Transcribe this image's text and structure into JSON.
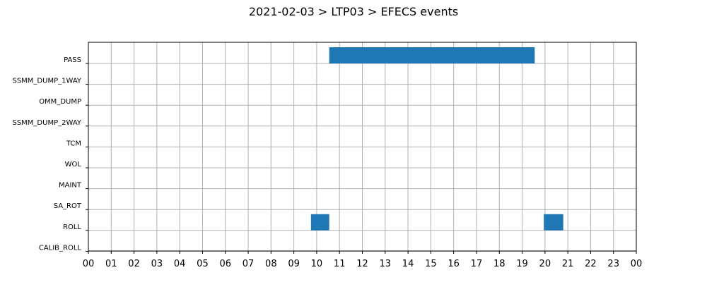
{
  "chart_data": {
    "type": "bar",
    "orientation": "horizontal-timeline",
    "title": "2021-02-03 > LTP03 > EFECS events",
    "xlabel": "",
    "ylabel": "",
    "xlim": [
      0,
      24
    ],
    "x_ticks": [
      "00",
      "01",
      "02",
      "03",
      "04",
      "05",
      "06",
      "07",
      "08",
      "09",
      "10",
      "11",
      "12",
      "13",
      "14",
      "15",
      "16",
      "17",
      "18",
      "19",
      "20",
      "21",
      "22",
      "23",
      "00"
    ],
    "categories": [
      "PASS",
      "SSMM_DUMP_1WAY",
      "OMM_DUMP",
      "SSMM_DUMP_2WAY",
      "TCM",
      "WOL",
      "MAINT",
      "SA_ROT",
      "ROLL",
      "CALIB_ROLL"
    ],
    "grid": true,
    "bar_color": "#1f77b4",
    "events": [
      {
        "category": "PASS",
        "start": 10.55,
        "end": 19.55
      },
      {
        "category": "ROLL",
        "start": 9.75,
        "end": 10.55
      },
      {
        "category": "ROLL",
        "start": 19.95,
        "end": 20.8
      }
    ]
  }
}
